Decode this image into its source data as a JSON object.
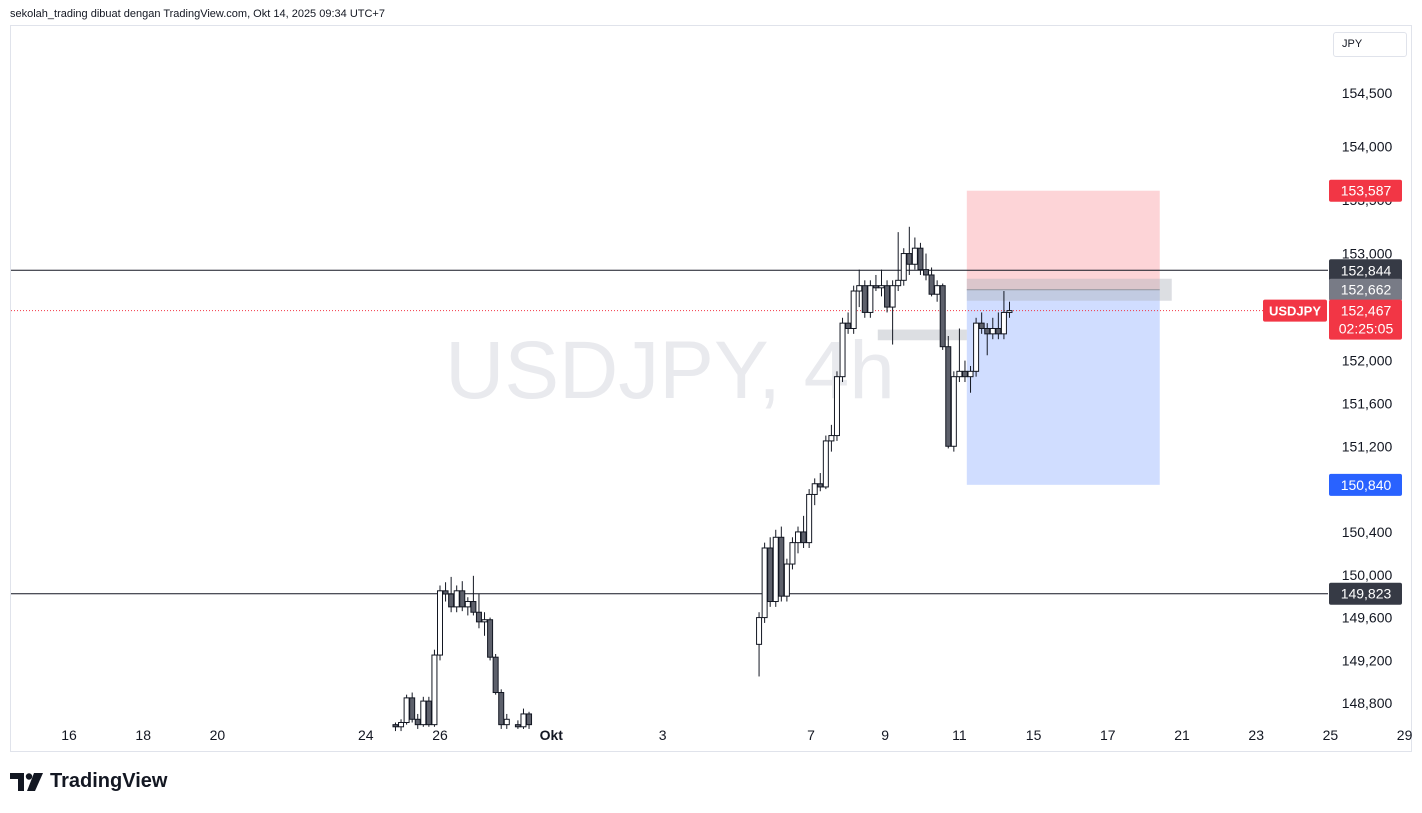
{
  "header": {
    "caption": "sekolah_trading dibuat dengan TradingView.com, Okt 14, 2025 09:34 UTC+7"
  },
  "toolbar": {
    "currency_label": "JPY"
  },
  "brand": {
    "logo_text": "TradingView",
    "logo_icon": "tradingview-logo-icon"
  },
  "chart_data": {
    "type": "candlestick",
    "symbol_label": "USDJPY",
    "watermark": "USDJPY, 4h",
    "ylim": [
      148550,
      155200
    ],
    "y_ticks": [
      {
        "value": 154500,
        "label": "154,500"
      },
      {
        "value": 154000,
        "label": "154,000"
      },
      {
        "value": 153500,
        "label": "153,500"
      },
      {
        "value": 153000,
        "label": "153,000"
      },
      {
        "value": 152000,
        "label": "152,000"
      },
      {
        "value": 151600,
        "label": "151,600"
      },
      {
        "value": 151200,
        "label": "151,200"
      },
      {
        "value": 150400,
        "label": "150,400"
      },
      {
        "value": 150000,
        "label": "150,000"
      },
      {
        "value": 149600,
        "label": "149,600"
      },
      {
        "value": 149200,
        "label": "149,200"
      },
      {
        "value": 148800,
        "label": "148,800"
      }
    ],
    "x_ticks": [
      {
        "day": 16,
        "label": "16"
      },
      {
        "day": 18,
        "label": "18"
      },
      {
        "day": 20,
        "label": "20"
      },
      {
        "day": 24,
        "label": "24"
      },
      {
        "day": 26,
        "label": "26"
      },
      {
        "day": 29,
        "label": "Okt"
      },
      {
        "day": 32,
        "label": "3"
      },
      {
        "day": 36,
        "label": "7"
      },
      {
        "day": 38,
        "label": "9"
      },
      {
        "day": 40,
        "label": "11"
      },
      {
        "day": 42,
        "label": "15"
      },
      {
        "day": 44,
        "label": "17"
      },
      {
        "day": 46,
        "label": "21"
      },
      {
        "day": 48,
        "label": "23"
      },
      {
        "day": 50,
        "label": "25"
      },
      {
        "day": 52,
        "label": "29"
      }
    ],
    "horizontal_lines": [
      {
        "value": 152844,
        "label": "152,844"
      },
      {
        "value": 149823,
        "label": "149,823"
      }
    ],
    "position": {
      "type": "short",
      "start_day": 40.2,
      "end_day": 45.4,
      "entry": 152662,
      "entry_label": "152,662",
      "stop": 153587,
      "stop_label": "153,587",
      "target": 150840,
      "target_label": "150,840"
    },
    "last_price": 152467,
    "last_price_label": "152,467",
    "countdown": "02:25:05",
    "gray_zones": [
      {
        "from_day": 37.8,
        "to_day": 40.2,
        "from": 152290,
        "to": 152190
      }
    ],
    "candles": [
      {
        "d": 24.8,
        "o": 148600,
        "h": 148620,
        "l": 148540,
        "c": 148580
      },
      {
        "d": 24.95,
        "o": 148580,
        "h": 148650,
        "l": 148540,
        "c": 148620
      },
      {
        "d": 25.1,
        "o": 148620,
        "h": 148880,
        "l": 148600,
        "c": 148850
      },
      {
        "d": 25.25,
        "o": 148850,
        "h": 148900,
        "l": 148620,
        "c": 148650
      },
      {
        "d": 25.4,
        "o": 148650,
        "h": 148700,
        "l": 148560,
        "c": 148600
      },
      {
        "d": 25.55,
        "o": 148600,
        "h": 148860,
        "l": 148580,
        "c": 148820
      },
      {
        "d": 25.7,
        "o": 148820,
        "h": 148860,
        "l": 148580,
        "c": 148600
      },
      {
        "d": 25.85,
        "o": 148600,
        "h": 149300,
        "l": 148580,
        "c": 149250
      },
      {
        "d": 26.0,
        "o": 149250,
        "h": 149900,
        "l": 149200,
        "c": 149850
      },
      {
        "d": 26.15,
        "o": 149850,
        "h": 149930,
        "l": 149750,
        "c": 149820
      },
      {
        "d": 26.3,
        "o": 149820,
        "h": 149980,
        "l": 149650,
        "c": 149700
      },
      {
        "d": 26.45,
        "o": 149700,
        "h": 149900,
        "l": 149650,
        "c": 149850
      },
      {
        "d": 26.6,
        "o": 149850,
        "h": 149940,
        "l": 149660,
        "c": 149700
      },
      {
        "d": 26.75,
        "o": 149700,
        "h": 149790,
        "l": 149620,
        "c": 149750
      },
      {
        "d": 26.9,
        "o": 149750,
        "h": 149990,
        "l": 149620,
        "c": 149650
      },
      {
        "d": 27.05,
        "o": 149650,
        "h": 149820,
        "l": 149500,
        "c": 149560
      },
      {
        "d": 27.2,
        "o": 149560,
        "h": 149650,
        "l": 149430,
        "c": 149580
      },
      {
        "d": 27.35,
        "o": 149580,
        "h": 149600,
        "l": 149200,
        "c": 149230
      },
      {
        "d": 27.5,
        "o": 149230,
        "h": 149260,
        "l": 148880,
        "c": 148900
      },
      {
        "d": 27.65,
        "o": 148900,
        "h": 148930,
        "l": 148560,
        "c": 148600
      },
      {
        "d": 27.8,
        "o": 148600,
        "h": 148700,
        "l": 148560,
        "c": 148650
      },
      {
        "d": 28.1,
        "o": 148600,
        "h": 148640,
        "l": 148560,
        "c": 148580
      },
      {
        "d": 28.25,
        "o": 148580,
        "h": 148750,
        "l": 148560,
        "c": 148700
      },
      {
        "d": 28.4,
        "o": 148700,
        "h": 148720,
        "l": 148560,
        "c": 148600
      },
      {
        "d": 34.6,
        "o": 149350,
        "h": 149650,
        "l": 149050,
        "c": 149600
      },
      {
        "d": 34.75,
        "o": 149600,
        "h": 150300,
        "l": 149550,
        "c": 150250
      },
      {
        "d": 34.9,
        "o": 150250,
        "h": 150350,
        "l": 149700,
        "c": 149750
      },
      {
        "d": 35.05,
        "o": 149750,
        "h": 150420,
        "l": 149700,
        "c": 150350
      },
      {
        "d": 35.2,
        "o": 150350,
        "h": 150450,
        "l": 149750,
        "c": 149800
      },
      {
        "d": 35.35,
        "o": 149800,
        "h": 150150,
        "l": 149750,
        "c": 150100
      },
      {
        "d": 35.5,
        "o": 150100,
        "h": 150350,
        "l": 150050,
        "c": 150300
      },
      {
        "d": 35.65,
        "o": 150300,
        "h": 150450,
        "l": 150200,
        "c": 150400
      },
      {
        "d": 35.8,
        "o": 150400,
        "h": 150550,
        "l": 150250,
        "c": 150300
      },
      {
        "d": 35.95,
        "o": 150300,
        "h": 150800,
        "l": 150250,
        "c": 150750
      },
      {
        "d": 36.1,
        "o": 150750,
        "h": 150900,
        "l": 150650,
        "c": 150850
      },
      {
        "d": 36.25,
        "o": 150850,
        "h": 150950,
        "l": 150780,
        "c": 150820
      },
      {
        "d": 36.4,
        "o": 150820,
        "h": 151300,
        "l": 150800,
        "c": 151250
      },
      {
        "d": 36.55,
        "o": 151250,
        "h": 151400,
        "l": 151150,
        "c": 151300
      },
      {
        "d": 36.7,
        "o": 151300,
        "h": 151900,
        "l": 151250,
        "c": 151850
      },
      {
        "d": 36.85,
        "o": 151850,
        "h": 152400,
        "l": 151800,
        "c": 152350
      },
      {
        "d": 37.0,
        "o": 152350,
        "h": 152450,
        "l": 152250,
        "c": 152300
      },
      {
        "d": 37.15,
        "o": 152300,
        "h": 152700,
        "l": 152250,
        "c": 152650
      },
      {
        "d": 37.3,
        "o": 152650,
        "h": 152850,
        "l": 152500,
        "c": 152700
      },
      {
        "d": 37.45,
        "o": 152700,
        "h": 152750,
        "l": 152400,
        "c": 152450
      },
      {
        "d": 37.6,
        "o": 152450,
        "h": 152750,
        "l": 152400,
        "c": 152700
      },
      {
        "d": 37.75,
        "o": 152700,
        "h": 152800,
        "l": 152650,
        "c": 152680
      },
      {
        "d": 37.9,
        "o": 152680,
        "h": 152850,
        "l": 152600,
        "c": 152700
      },
      {
        "d": 38.05,
        "o": 152700,
        "h": 152750,
        "l": 152450,
        "c": 152500
      },
      {
        "d": 38.2,
        "o": 152500,
        "h": 152750,
        "l": 152150,
        "c": 152700
      },
      {
        "d": 38.35,
        "o": 152700,
        "h": 153200,
        "l": 152650,
        "c": 152750
      },
      {
        "d": 38.5,
        "o": 152750,
        "h": 153050,
        "l": 152700,
        "c": 153000
      },
      {
        "d": 38.65,
        "o": 153000,
        "h": 153250,
        "l": 152800,
        "c": 152900
      },
      {
        "d": 38.8,
        "o": 152900,
        "h": 153150,
        "l": 152850,
        "c": 153050
      },
      {
        "d": 38.95,
        "o": 153050,
        "h": 153100,
        "l": 152800,
        "c": 152850
      },
      {
        "d": 39.1,
        "o": 152850,
        "h": 153000,
        "l": 152750,
        "c": 152800
      },
      {
        "d": 39.25,
        "o": 152800,
        "h": 152870,
        "l": 152600,
        "c": 152620
      },
      {
        "d": 39.4,
        "o": 152620,
        "h": 152750,
        "l": 152550,
        "c": 152700
      },
      {
        "d": 39.55,
        "o": 152700,
        "h": 152720,
        "l": 152100,
        "c": 152130
      },
      {
        "d": 39.7,
        "o": 152130,
        "h": 152230,
        "l": 151180,
        "c": 151200
      },
      {
        "d": 39.85,
        "o": 151200,
        "h": 151900,
        "l": 151150,
        "c": 151850
      },
      {
        "d": 40.0,
        "o": 151850,
        "h": 152300,
        "l": 151800,
        "c": 151900
      },
      {
        "d": 40.15,
        "o": 151900,
        "h": 152000,
        "l": 151800,
        "c": 151850
      },
      {
        "d": 40.3,
        "o": 151850,
        "h": 151950,
        "l": 151700,
        "c": 151900
      },
      {
        "d": 40.45,
        "o": 151900,
        "h": 152400,
        "l": 151850,
        "c": 152350
      },
      {
        "d": 40.6,
        "o": 152350,
        "h": 152450,
        "l": 152250,
        "c": 152300
      },
      {
        "d": 40.75,
        "o": 152300,
        "h": 152350,
        "l": 152050,
        "c": 152250
      },
      {
        "d": 40.9,
        "o": 152250,
        "h": 152400,
        "l": 152200,
        "c": 152300
      },
      {
        "d": 41.05,
        "o": 152300,
        "h": 152450,
        "l": 152200,
        "c": 152250
      },
      {
        "d": 41.2,
        "o": 152250,
        "h": 152650,
        "l": 152200,
        "c": 152450
      },
      {
        "d": 41.35,
        "o": 152450,
        "h": 152550,
        "l": 152400,
        "c": 152467
      }
    ]
  }
}
